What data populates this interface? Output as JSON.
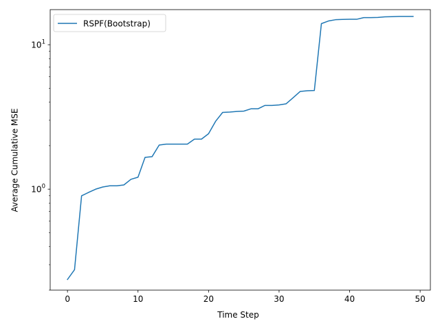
{
  "chart_data": {
    "type": "line",
    "xlabel": "Time Step",
    "ylabel": "Average Cumulative MSE",
    "yscale": "log",
    "xlim": [
      -2.45,
      51.45
    ],
    "ylim": [
      0.2,
      17.5
    ],
    "grid": false,
    "legend_position": "top-left",
    "x_ticks": [
      {
        "value": 0,
        "label": "0"
      },
      {
        "value": 10,
        "label": "10"
      },
      {
        "value": 20,
        "label": "20"
      },
      {
        "value": 30,
        "label": "30"
      },
      {
        "value": 40,
        "label": "40"
      },
      {
        "value": 50,
        "label": "50"
      }
    ],
    "y_major_ticks": [
      {
        "value": 1,
        "base": "10",
        "exponent": "0"
      },
      {
        "value": 10,
        "base": "10",
        "exponent": "1"
      }
    ],
    "y_minor_ticks": [
      0.2,
      0.3,
      0.4,
      0.5,
      0.6,
      0.7,
      0.8,
      0.9,
      2,
      3,
      4,
      5,
      6,
      7,
      8,
      9
    ],
    "series": [
      {
        "name": "RSPF(Bootstrap)",
        "color": "#1f77b4",
        "x": [
          0,
          1,
          2,
          3,
          4,
          5,
          6,
          7,
          8,
          9,
          10,
          11,
          12,
          13,
          14,
          15,
          16,
          17,
          18,
          19,
          20,
          21,
          22,
          23,
          24,
          25,
          26,
          27,
          28,
          29,
          30,
          31,
          32,
          33,
          34,
          35,
          36,
          37,
          38,
          39,
          40,
          41,
          42,
          43,
          44,
          45,
          46,
          47,
          48,
          49
        ],
        "values": [
          0.237,
          0.277,
          0.9,
          0.95,
          1.0,
          1.035,
          1.055,
          1.055,
          1.07,
          1.17,
          1.21,
          1.66,
          1.68,
          2.02,
          2.05,
          2.05,
          2.05,
          2.05,
          2.22,
          2.22,
          2.42,
          2.95,
          3.4,
          3.42,
          3.45,
          3.47,
          3.6,
          3.6,
          3.8,
          3.8,
          3.83,
          3.9,
          4.3,
          4.75,
          4.8,
          4.82,
          14.0,
          14.6,
          14.9,
          14.98,
          15.0,
          15.0,
          15.4,
          15.4,
          15.45,
          15.6,
          15.65,
          15.7,
          15.7,
          15.7
        ]
      }
    ]
  }
}
